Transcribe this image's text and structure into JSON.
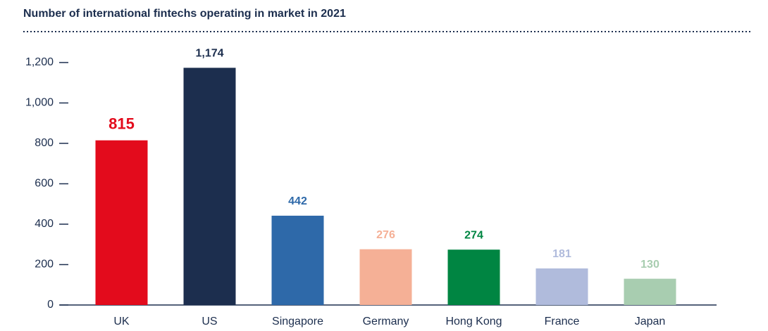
{
  "chart_data": {
    "type": "bar",
    "title": "Number of international fintechs operating in market in 2021",
    "categories": [
      "UK",
      "US",
      "Singapore",
      "Germany",
      "Hong Kong",
      "France",
      "Japan"
    ],
    "values": [
      815,
      1174,
      442,
      276,
      274,
      181,
      130
    ],
    "value_labels": [
      "815",
      "1,174",
      "442",
      "276",
      "274",
      "181",
      "130"
    ],
    "colors": [
      "#e30b1c",
      "#1c2e4e",
      "#2e69a9",
      "#f5b096",
      "#008542",
      "#b0bbdc",
      "#a8cdb0"
    ],
    "ylim": [
      0,
      1200
    ],
    "yticks": [
      0,
      200,
      400,
      600,
      800,
      {
        "value": 1000,
        "label": "1,000"
      },
      {
        "value": 1200,
        "label": "1,200"
      }
    ],
    "grid": false
  }
}
